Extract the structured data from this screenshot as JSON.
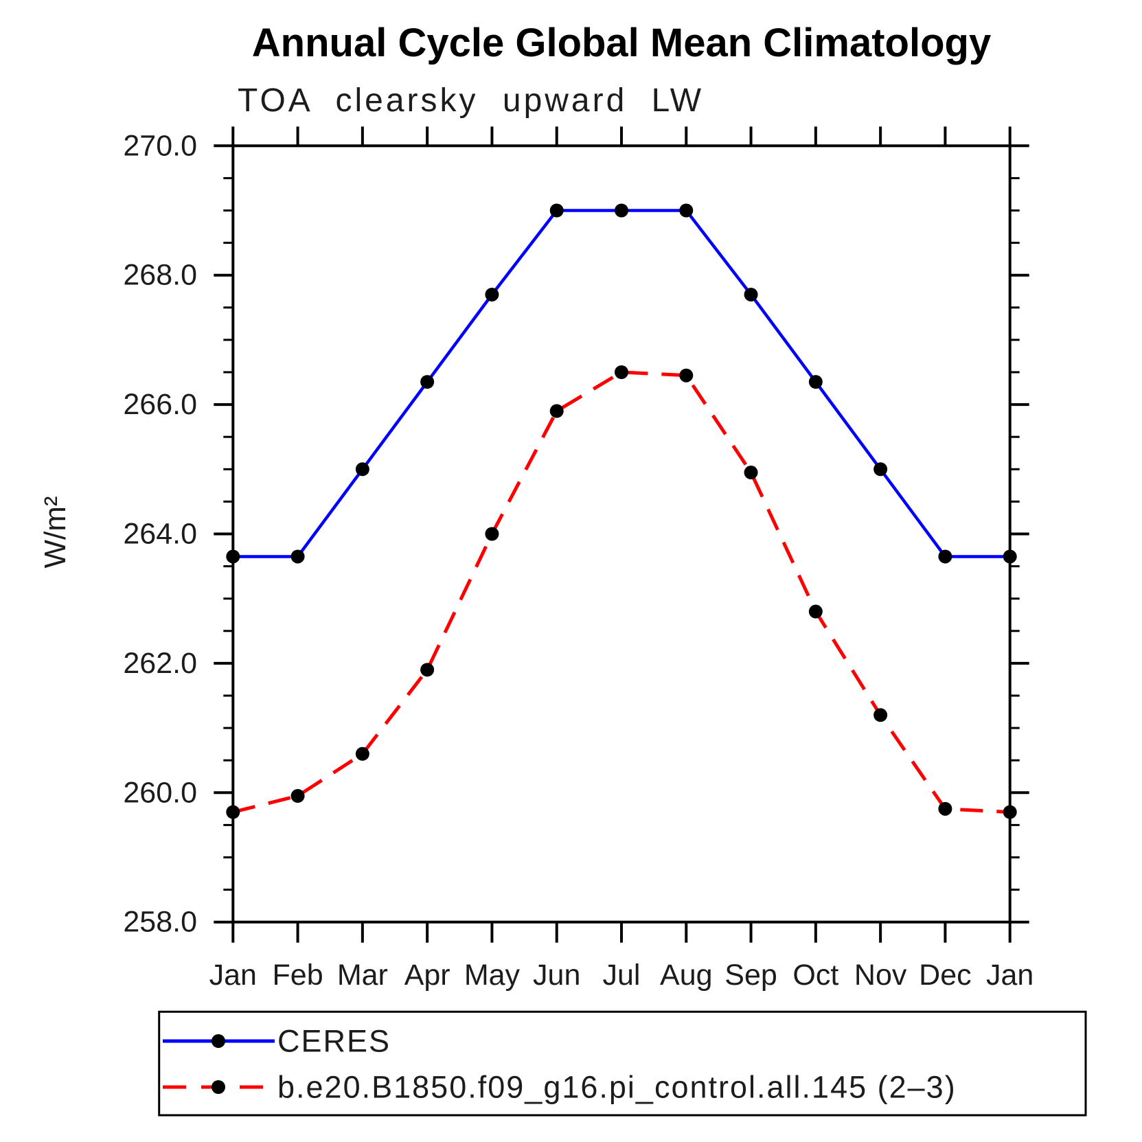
{
  "page": {
    "background": "#ffffff"
  },
  "chart_data": {
    "type": "line",
    "title": "Annual Cycle Global Mean Climatology",
    "subtitle": "TOA clearsky upward LW",
    "ylabel": "W/m²",
    "x_categories": [
      "Jan",
      "Feb",
      "Mar",
      "Apr",
      "May",
      "Jun",
      "Jul",
      "Aug",
      "Sep",
      "Oct",
      "Nov",
      "Dec",
      "Jan"
    ],
    "ylim": [
      258.0,
      270.0
    ],
    "ytick_major_step": 2.0,
    "ytick_minor_step": 0.5,
    "ytick_labels": [
      "270.0",
      "268.0",
      "266.0",
      "264.0",
      "262.0",
      "260.0",
      "258.0"
    ],
    "grid": false,
    "axis_color": "#000000",
    "legend_position": "bottom-left-box",
    "series": [
      {
        "name": "CERES",
        "color": "#0000ff",
        "line_style": "solid",
        "marker": "circle",
        "marker_color": "#000000",
        "values": [
          263.65,
          263.65,
          265.0,
          266.35,
          267.7,
          269.0,
          269.0,
          269.0,
          267.7,
          266.35,
          265.0,
          263.65,
          263.65
        ]
      },
      {
        "name": "b.e20.B1850.f09_g16.pi_control.all.145 (2–3)",
        "color": "#ff0000",
        "line_style": "dashed",
        "marker": "circle",
        "marker_color": "#000000",
        "values": [
          259.7,
          259.95,
          260.6,
          261.9,
          264.0,
          265.9,
          266.5,
          266.45,
          264.95,
          262.8,
          261.2,
          259.75,
          259.7
        ]
      }
    ]
  }
}
